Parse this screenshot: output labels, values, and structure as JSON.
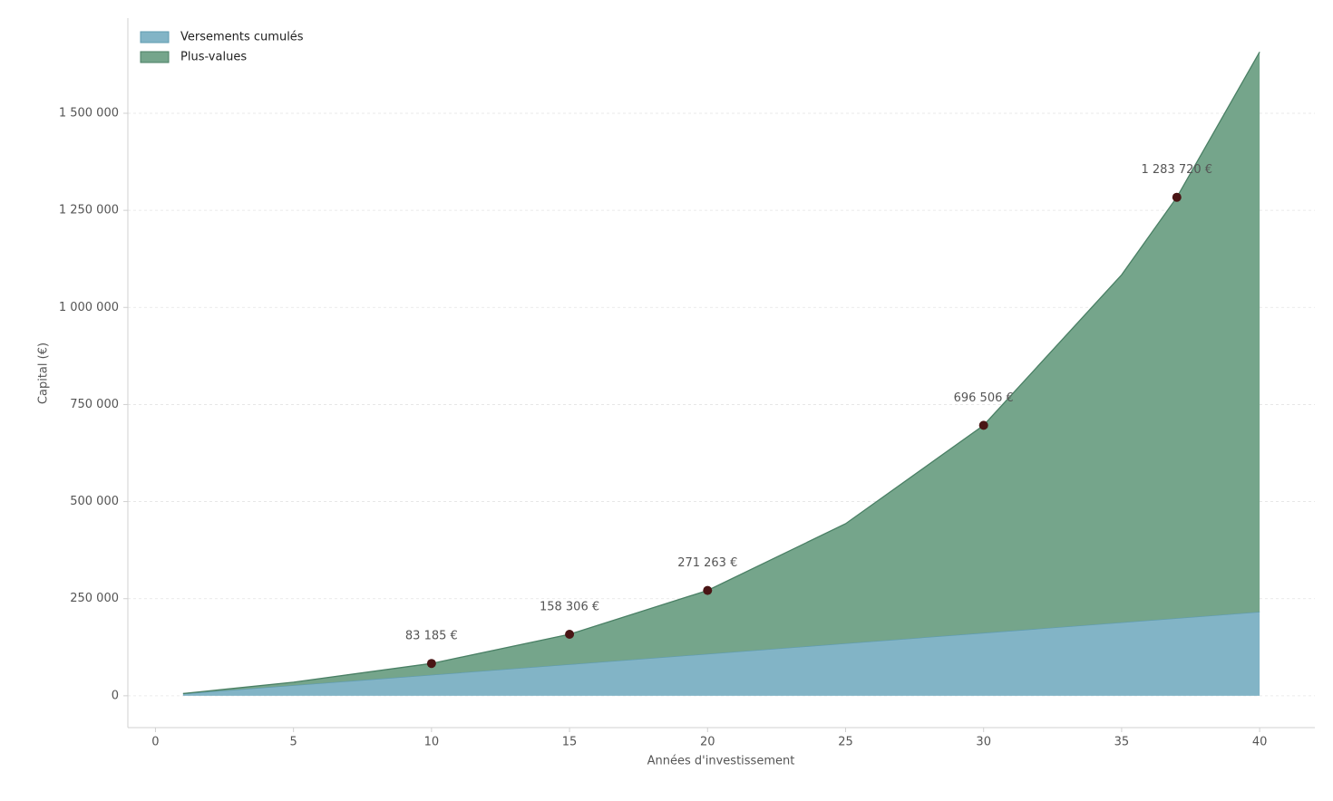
{
  "chart_data": {
    "type": "stacked_area",
    "xlabel": "Années d'investissement",
    "ylabel": "Capital (€)",
    "x": [
      1,
      5,
      10,
      15,
      20,
      25,
      30,
      35,
      37,
      40
    ],
    "series": [
      {
        "name": "Versements cumulés",
        "color": "#82b4c6",
        "edge": "#5f9bb0",
        "values": [
          5400,
          27000,
          54000,
          81000,
          108000,
          135000,
          162000,
          189000,
          199800,
          216000
        ]
      },
      {
        "name": "Plus-values",
        "color": "#75a58b",
        "edge": "#4a8065",
        "values": [
          200,
          8000,
          29185,
          77306,
          163263,
          308000,
          534506,
          895000,
          1083920,
          1442000
        ]
      }
    ],
    "annotations": [
      {
        "x": 10,
        "value": 83185,
        "label": "83 185 €"
      },
      {
        "x": 15,
        "value": 158306,
        "label": "158 306 €"
      },
      {
        "x": 20,
        "value": 271263,
        "label": "271 263 €"
      },
      {
        "x": 30,
        "value": 696506,
        "label": "696 506 €"
      },
      {
        "x": 37,
        "value": 1283720,
        "label": "1 283 720 €"
      }
    ],
    "marker_color": "#4a1515",
    "xlim": [
      -1,
      42
    ],
    "ylim": [
      -82000,
      1745000
    ],
    "xticks": [
      0,
      5,
      10,
      15,
      20,
      25,
      30,
      35,
      40
    ],
    "yticks": [
      0,
      {
        "value": 250000,
        "label": "250 000"
      },
      {
        "value": 500000,
        "label": "500 000"
      },
      {
        "value": 750000,
        "label": "750 000"
      },
      {
        "value": 1000000,
        "label": "1 000 000"
      },
      {
        "value": 1250000,
        "label": "1 250 000"
      },
      {
        "value": 1500000,
        "label": "1 500 000"
      }
    ],
    "grid": true,
    "legend": "upper left"
  }
}
